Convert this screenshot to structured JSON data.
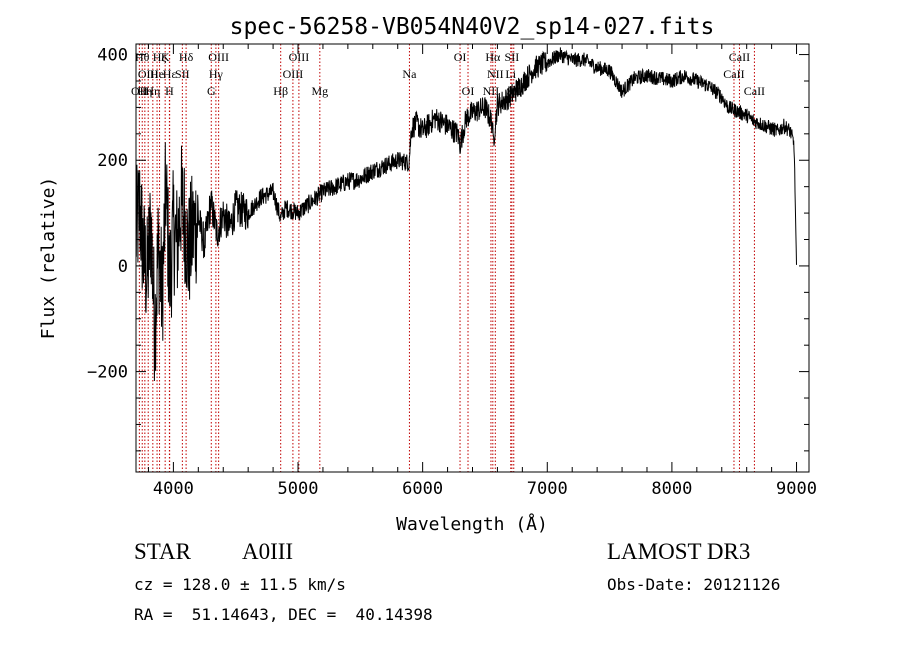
{
  "chart_data": {
    "type": "line",
    "title": "spec-56258-VB054N40V2_sp14-027.fits",
    "xlabel": "Wavelength (Å)",
    "ylabel": "Flux (relative)",
    "xlim": [
      3700,
      9100
    ],
    "ylim": [
      -390,
      420
    ],
    "x_ticks": [
      4000,
      5000,
      6000,
      7000,
      8000,
      9000
    ],
    "y_ticks": [
      -200,
      0,
      200,
      400
    ],
    "x_tick_labels": [
      "4000",
      "5000",
      "6000",
      "7000",
      "8000",
      "9000"
    ],
    "y_tick_labels": [
      "−200",
      "0",
      "200",
      "400"
    ],
    "series": [
      {
        "name": "flux",
        "x": [
          3700,
          3730,
          3760,
          3790,
          3820,
          3850,
          3880,
          3910,
          3940,
          3970,
          4000,
          4030,
          4060,
          4090,
          4120,
          4150,
          4200,
          4250,
          4300,
          4350,
          4400,
          4450,
          4500,
          4600,
          4700,
          4800,
          4860,
          4900,
          5000,
          5100,
          5200,
          5300,
          5400,
          5500,
          5600,
          5700,
          5800,
          5890,
          5910,
          5950,
          6000,
          6100,
          6200,
          6280,
          6300,
          6350,
          6400,
          6500,
          6560,
          6565,
          6600,
          6700,
          6800,
          6900,
          7000,
          7100,
          7200,
          7300,
          7400,
          7500,
          7600,
          7700,
          7800,
          7900,
          8000,
          8100,
          8200,
          8300,
          8400,
          8450,
          8500,
          8550,
          8600,
          8650,
          8700,
          8750,
          8800,
          8850,
          8900,
          8950,
          8980,
          9000
        ],
        "y": [
          60,
          110,
          20,
          -20,
          80,
          -120,
          40,
          -60,
          150,
          -30,
          70,
          40,
          120,
          90,
          20,
          60,
          90,
          40,
          120,
          60,
          100,
          70,
          110,
          100,
          130,
          140,
          90,
          110,
          100,
          120,
          140,
          150,
          160,
          165,
          180,
          190,
          200,
          195,
          260,
          270,
          255,
          280,
          265,
          250,
          230,
          280,
          290,
          300,
          270,
          230,
          305,
          320,
          345,
          375,
          385,
          400,
          390,
          390,
          375,
          370,
          330,
          355,
          360,
          355,
          350,
          360,
          350,
          340,
          320,
          300,
          295,
          290,
          285,
          275,
          270,
          265,
          260,
          255,
          265,
          255,
          230,
          0
        ]
      }
    ],
    "line_ids": [
      {
        "wavelength": 3727,
        "label": "OII",
        "row": 2
      },
      {
        "wavelength": 3750,
        "label": "Hθ",
        "row": 0
      },
      {
        "wavelength": 3771,
        "label": "Hη",
        "row": 2
      },
      {
        "wavelength": 3798,
        "label": "OIII",
        "row": 1
      },
      {
        "wavelength": 3835,
        "label": "Hη",
        "row": 2
      },
      {
        "wavelength": 3869,
        "label": "He",
        "row": 1
      },
      {
        "wavelength": 3889,
        "label": "Hζ",
        "row": 0
      },
      {
        "wavelength": 3934,
        "label": "K",
        "row": 0
      },
      {
        "wavelength": 3968,
        "label": "H",
        "row": 2
      },
      {
        "wavelength": 3970,
        "label": "Hε",
        "row": 1
      },
      {
        "wavelength": 4072,
        "label": "SII",
        "row": 1
      },
      {
        "wavelength": 4102,
        "label": "Hδ",
        "row": 0
      },
      {
        "wavelength": 4304,
        "label": "G",
        "row": 2
      },
      {
        "wavelength": 4341,
        "label": "Hγ",
        "row": 1
      },
      {
        "wavelength": 4363,
        "label": "OIII",
        "row": 0
      },
      {
        "wavelength": 4861,
        "label": "Hβ",
        "row": 2
      },
      {
        "wavelength": 4959,
        "label": "OIII",
        "row": 1
      },
      {
        "wavelength": 5007,
        "label": "OIII",
        "row": 0
      },
      {
        "wavelength": 5175,
        "label": "Mg",
        "row": 2
      },
      {
        "wavelength": 5894,
        "label": "Na",
        "row": 1
      },
      {
        "wavelength": 6300,
        "label": "OI",
        "row": 0
      },
      {
        "wavelength": 6364,
        "label": "OI",
        "row": 2
      },
      {
        "wavelength": 6548,
        "label": "NII",
        "row": 2
      },
      {
        "wavelength": 6563,
        "label": "Hα",
        "row": 0
      },
      {
        "wavelength": 6583,
        "label": "NII",
        "row": 1
      },
      {
        "wavelength": 6707,
        "label": "Li",
        "row": 1
      },
      {
        "wavelength": 6716,
        "label": "SII",
        "row": 0
      },
      {
        "wavelength": 6731,
        "label": "SII",
        "row": 2
      },
      {
        "wavelength": 8498,
        "label": "CaII",
        "row": 1
      },
      {
        "wavelength": 8542,
        "label": "CaII",
        "row": 0
      },
      {
        "wavelength": 8662,
        "label": "CaII",
        "row": 2
      }
    ]
  },
  "footer": {
    "object_class": "STAR",
    "subclass": "A0III",
    "survey": "LAMOST DR3",
    "redshift": "cz = 128.0 ± 11.5 km/s",
    "obs_date": "Obs-Date: 20121126",
    "coords": "RA =  51.14643, DEC =  40.14398"
  },
  "colors": {
    "spectrum": "#000000",
    "line_markers": "#c00000",
    "axes": "#000000",
    "background": "#ffffff"
  }
}
